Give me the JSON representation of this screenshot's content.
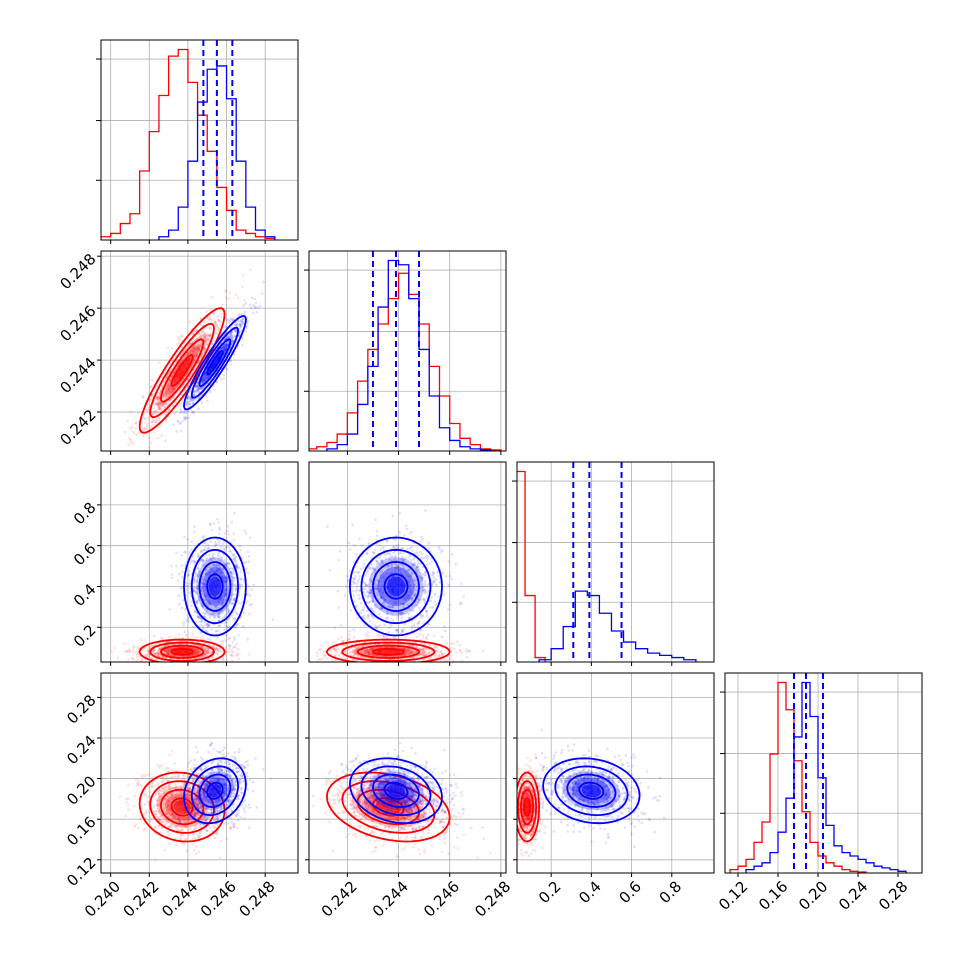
{
  "colors": {
    "series_a": "#ff0000",
    "series_b": "#0000ff",
    "grid": "#b0b0b0",
    "axes": "#000000"
  },
  "chart_data": {
    "type": "scatter",
    "subtype": "corner-plot",
    "title": "",
    "grid": true,
    "quantile_line_style": "dashed",
    "parameters": [
      {
        "label": "",
        "range": [
          0.2395,
          0.2497
        ],
        "ticks": [
          0.24,
          0.242,
          0.244,
          0.246,
          0.248
        ],
        "tick_labels": [
          "0.240",
          "0.242",
          "0.244",
          "0.246",
          "0.248"
        ]
      },
      {
        "label": "",
        "range": [
          0.2405,
          0.2482
        ],
        "ticks": [
          0.242,
          0.244,
          0.246,
          0.248
        ],
        "tick_labels": [
          "0.242",
          "0.244",
          "0.246",
          "0.248"
        ]
      },
      {
        "label": "",
        "range": [
          0.03,
          1.01
        ],
        "ticks": [
          0.2,
          0.4,
          0.6,
          0.8
        ],
        "tick_labels": [
          "0.2",
          "0.4",
          "0.6",
          "0.8"
        ]
      },
      {
        "label": "",
        "range": [
          0.107,
          0.304
        ],
        "ticks": [
          0.12,
          0.16,
          0.2,
          0.24,
          0.28
        ],
        "tick_labels": [
          "0.12",
          "0.16",
          "0.20",
          "0.24",
          "0.28"
        ]
      }
    ],
    "series": [
      {
        "color": "#ff0000",
        "means": [
          0.2437,
          0.2436,
          0.08,
          0.172
        ],
        "stds": [
          0.0011,
          0.0012,
          0.03,
          0.017
        ],
        "correlations": [
          [
            0,
            1,
            0.9
          ],
          [
            0,
            3,
            -0.1
          ],
          [
            1,
            3,
            -0.3
          ]
        ],
        "histograms": [
          {
            "edges": [
              0.2395,
              0.24,
              0.2405,
              0.241,
              0.2415,
              0.242,
              0.2425,
              0.243,
              0.2435,
              0.244,
              0.2445,
              0.245,
              0.2455,
              0.246,
              0.2465,
              0.247,
              0.2475,
              0.248,
              0.2485
            ],
            "counts": [
              1,
              2,
              5,
              8,
              21,
              33,
              44,
              56,
              58,
              48,
              38,
              27,
              16,
              9,
              3,
              2,
              1,
              0.5
            ]
          },
          {
            "edges": [
              0.2404,
              0.2408,
              0.2412,
              0.2416,
              0.242,
              0.2424,
              0.2428,
              0.2432,
              0.2436,
              0.244,
              0.2444,
              0.2448,
              0.2452,
              0.2456,
              0.246,
              0.2464,
              0.2468,
              0.2472,
              0.2476,
              0.248
            ],
            "counts": [
              1,
              2,
              4,
              8,
              18,
              33,
              48,
              60,
              72,
              84,
              74,
              60,
              40,
              26,
              13,
              6,
              3,
              1,
              0.5
            ]
          },
          {
            "edges": [
              0.02,
              0.07,
              0.12,
              0.17
            ],
            "counts": [
              86,
              30,
              2
            ]
          },
          {
            "edges": [
              0.112,
              0.12,
              0.128,
              0.136,
              0.144,
              0.152,
              0.16,
              0.168,
              0.176,
              0.184,
              0.192,
              0.2,
              0.208,
              0.216,
              0.224,
              0.232,
              0.24,
              0.248
            ],
            "counts": [
              1,
              2,
              4,
              9,
              15,
              35,
              56,
              48,
              33,
              18,
              9,
              5,
              3,
              2,
              1,
              0.5,
              0.3
            ]
          }
        ]
      },
      {
        "color": "#0000ff",
        "means": [
          0.2454,
          0.2439,
          0.4,
          0.188
        ],
        "stds": [
          0.0008,
          0.0009,
          0.12,
          0.016
        ],
        "correlations": [
          [
            0,
            1,
            0.92
          ],
          [
            0,
            3,
            0.2
          ],
          [
            1,
            3,
            -0.2
          ],
          [
            2,
            3,
            -0.15
          ]
        ],
        "histograms": [
          {
            "edges": [
              0.2425,
              0.243,
              0.2435,
              0.244,
              0.2445,
              0.245,
              0.2455,
              0.246,
              0.2465,
              0.247,
              0.2475,
              0.248,
              0.2485
            ],
            "counts": [
              1,
              3,
              10,
              24,
              42,
              52,
              53,
              43,
              24,
              10,
              3,
              1
            ]
          },
          {
            "edges": [
              0.2412,
              0.2416,
              0.242,
              0.2424,
              0.2428,
              0.2432,
              0.2436,
              0.244,
              0.2444,
              0.2448,
              0.2452,
              0.2456,
              0.246,
              0.2464,
              0.2468,
              0.2472,
              0.2476
            ],
            "counts": [
              1,
              3,
              8,
              22,
              40,
              68,
              90,
              88,
              72,
              48,
              26,
              11,
              5,
              2,
              1,
              0.5
            ]
          },
          {
            "edges": [
              0.14,
              0.2,
              0.26,
              0.32,
              0.38,
              0.44,
              0.5,
              0.56,
              0.62,
              0.68,
              0.74,
              0.8,
              0.86,
              0.92
            ],
            "counts": [
              1,
              6,
              16,
              32,
              30,
              22,
              14,
              9,
              6,
              4,
              3,
              2,
              1
            ]
          },
          {
            "edges": [
              0.128,
              0.136,
              0.144,
              0.152,
              0.16,
              0.168,
              0.176,
              0.184,
              0.192,
              0.2,
              0.208,
              0.216,
              0.224,
              0.232,
              0.24,
              0.248,
              0.256,
              0.264,
              0.272,
              0.28,
              0.288
            ],
            "counts": [
              1,
              2,
              3,
              6,
              12,
              22,
              40,
              56,
              46,
              28,
              14,
              8,
              6,
              5,
              4,
              3,
              2,
              1.5,
              1,
              0.5
            ]
          }
        ],
        "quantiles": [
          [
            0.2448,
            0.2455,
            0.2463
          ],
          [
            0.243,
            0.2439,
            0.2448
          ],
          [
            0.31,
            0.39,
            0.55
          ],
          [
            0.176,
            0.188,
            0.205
          ]
        ]
      }
    ]
  }
}
